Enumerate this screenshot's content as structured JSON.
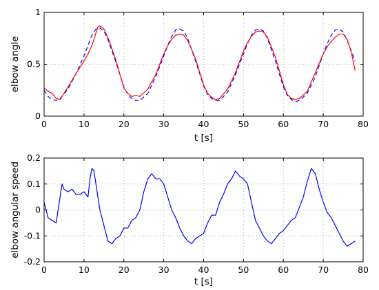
{
  "chart_data": [
    {
      "type": "line",
      "xlabel": "t [s]",
      "ylabel": "elbow angle",
      "xlim": [
        0,
        80
      ],
      "ylim": [
        0,
        1
      ],
      "xticks": [
        0,
        10,
        20,
        30,
        40,
        50,
        60,
        70,
        80
      ],
      "yticks": [
        0,
        0.5,
        1
      ],
      "xtick_labels": [
        "0",
        "10",
        "20",
        "30",
        "40",
        "50",
        "60",
        "70",
        "80"
      ],
      "ytick_labels": [
        "0",
        "0.5",
        "1"
      ],
      "grid": true,
      "series": [
        {
          "style": "dashed",
          "color": "#0000ff",
          "x": [
            0,
            1,
            2,
            3,
            4,
            6,
            8,
            10,
            11,
            12,
            13,
            14,
            15,
            16,
            18,
            20,
            21,
            22,
            23,
            24,
            26,
            28,
            30,
            31,
            32,
            33,
            34,
            35,
            36,
            38,
            40,
            41,
            42,
            43,
            44,
            46,
            48,
            50,
            51,
            52,
            53,
            54,
            55,
            56,
            58,
            60,
            61,
            62,
            63,
            64,
            66,
            68,
            70,
            71,
            72,
            73,
            74,
            75,
            76,
            77,
            78
          ],
          "values": [
            0.25,
            0.19,
            0.16,
            0.15,
            0.17,
            0.26,
            0.41,
            0.58,
            0.68,
            0.78,
            0.84,
            0.85,
            0.82,
            0.74,
            0.52,
            0.28,
            0.21,
            0.17,
            0.15,
            0.15,
            0.22,
            0.38,
            0.58,
            0.68,
            0.77,
            0.83,
            0.84,
            0.82,
            0.75,
            0.53,
            0.29,
            0.21,
            0.17,
            0.15,
            0.15,
            0.23,
            0.4,
            0.6,
            0.7,
            0.78,
            0.83,
            0.84,
            0.82,
            0.75,
            0.53,
            0.28,
            0.2,
            0.16,
            0.14,
            0.15,
            0.22,
            0.38,
            0.6,
            0.7,
            0.78,
            0.83,
            0.84,
            0.81,
            0.73,
            0.63,
            0.53
          ]
        },
        {
          "style": "solid",
          "color": "#ff0000",
          "x": [
            0,
            1,
            2,
            3,
            4,
            6,
            8,
            10,
            11,
            12,
            13,
            13.5,
            14,
            15,
            16,
            18,
            20,
            21,
            22,
            23,
            24,
            26,
            28,
            30,
            31,
            32,
            33,
            34,
            35,
            36,
            38,
            40,
            41,
            42,
            43,
            44,
            46,
            48,
            50,
            51,
            52,
            53,
            54,
            55,
            56,
            58,
            60,
            61,
            62,
            63,
            64,
            66,
            68,
            70,
            71,
            72,
            73,
            74,
            75,
            76,
            77,
            78
          ],
          "values": [
            0.27,
            0.24,
            0.22,
            0.17,
            0.16,
            0.28,
            0.41,
            0.53,
            0.6,
            0.68,
            0.8,
            0.86,
            0.87,
            0.84,
            0.76,
            0.54,
            0.27,
            0.22,
            0.19,
            0.2,
            0.19,
            0.26,
            0.4,
            0.6,
            0.68,
            0.74,
            0.78,
            0.79,
            0.78,
            0.73,
            0.55,
            0.3,
            0.22,
            0.18,
            0.16,
            0.17,
            0.26,
            0.42,
            0.63,
            0.71,
            0.77,
            0.81,
            0.82,
            0.81,
            0.76,
            0.57,
            0.3,
            0.21,
            0.17,
            0.16,
            0.17,
            0.24,
            0.42,
            0.6,
            0.67,
            0.72,
            0.76,
            0.79,
            0.79,
            0.74,
            0.62,
            0.44
          ]
        }
      ]
    },
    {
      "type": "line",
      "xlabel": "t [s]",
      "ylabel": "elbow angular speed",
      "xlim": [
        0,
        80
      ],
      "ylim": [
        -0.2,
        0.2
      ],
      "xticks": [
        0,
        10,
        20,
        30,
        40,
        50,
        60,
        70,
        80
      ],
      "yticks": [
        -0.2,
        -0.1,
        0,
        0.1,
        0.2
      ],
      "xtick_labels": [
        "0",
        "10",
        "20",
        "30",
        "40",
        "50",
        "60",
        "70",
        "80"
      ],
      "ytick_labels": [
        "-0.2",
        "-0.1",
        "0",
        "0.1",
        "0.2"
      ],
      "grid": true,
      "series": [
        {
          "style": "solid",
          "color": "#0000ff",
          "x": [
            0,
            0.5,
            1,
            2,
            3,
            4,
            4.5,
            5,
            6,
            7,
            8,
            9,
            10,
            11,
            11.5,
            12,
            12.5,
            13,
            14,
            15,
            16,
            17,
            18,
            19,
            20,
            21,
            22,
            23,
            24,
            25,
            26,
            27,
            28,
            29,
            30,
            31,
            32,
            33,
            34,
            35,
            36,
            37,
            38,
            39,
            40,
            41,
            42,
            43,
            44,
            45,
            46,
            47,
            48,
            49,
            50,
            51,
            52,
            53,
            54,
            55,
            56,
            57,
            58,
            59,
            60,
            61,
            62,
            63,
            64,
            65,
            66,
            67,
            68,
            69,
            70,
            71,
            72,
            73,
            74,
            75,
            76,
            77,
            78
          ],
          "values": [
            0.03,
            0.0,
            -0.03,
            -0.04,
            -0.05,
            0.05,
            0.1,
            0.08,
            0.07,
            0.08,
            0.06,
            0.06,
            0.07,
            0.05,
            0.12,
            0.16,
            0.15,
            0.1,
            0.0,
            -0.06,
            -0.12,
            -0.13,
            -0.11,
            -0.1,
            -0.07,
            -0.07,
            -0.04,
            -0.03,
            0.0,
            0.07,
            0.12,
            0.14,
            0.12,
            0.12,
            0.1,
            0.05,
            0.0,
            -0.03,
            -0.07,
            -0.1,
            -0.12,
            -0.13,
            -0.11,
            -0.1,
            -0.09,
            -0.05,
            -0.02,
            -0.02,
            0.03,
            0.06,
            0.1,
            0.12,
            0.15,
            0.13,
            0.12,
            0.1,
            0.03,
            -0.04,
            -0.07,
            -0.1,
            -0.12,
            -0.13,
            -0.11,
            -0.09,
            -0.08,
            -0.06,
            -0.04,
            -0.03,
            0.01,
            0.05,
            0.11,
            0.16,
            0.14,
            0.08,
            0.03,
            -0.01,
            -0.03,
            -0.06,
            -0.09,
            -0.12,
            -0.14,
            -0.13,
            -0.12
          ]
        }
      ]
    }
  ]
}
